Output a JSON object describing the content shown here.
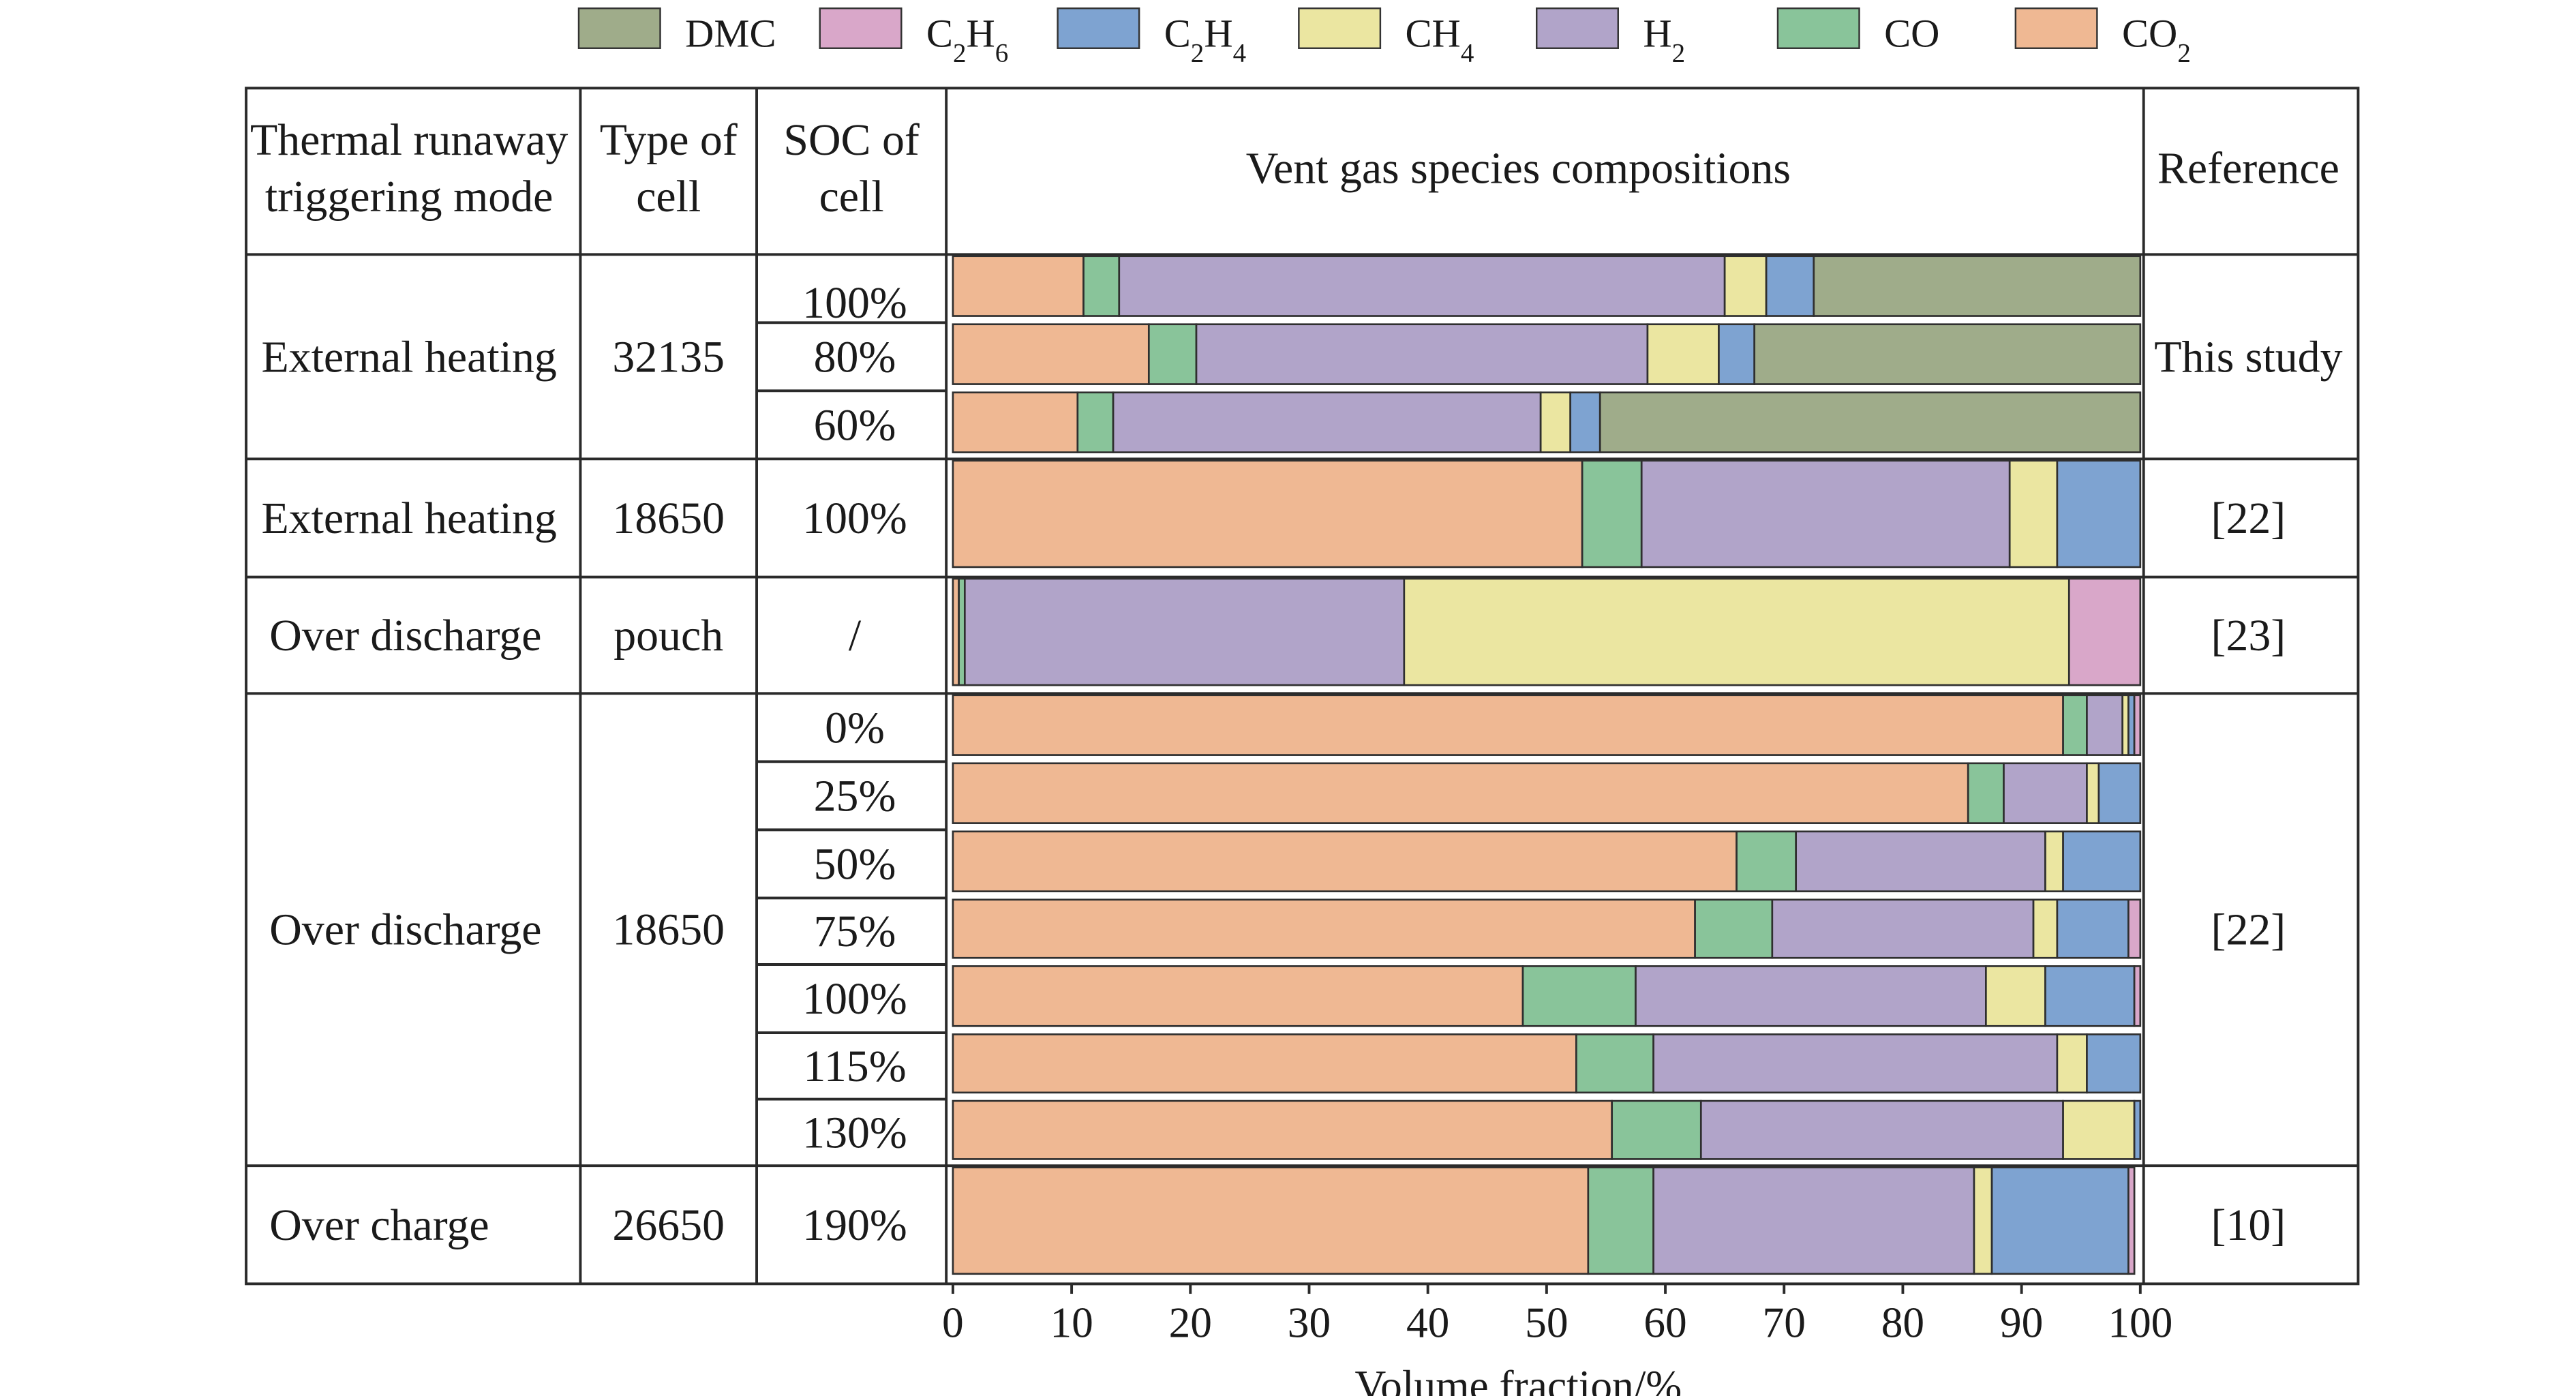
{
  "chart_data": {
    "type": "bar",
    "orientation": "horizontal",
    "stacked": true,
    "xlabel": "Volume fraction/%",
    "xlim": [
      0,
      100
    ],
    "xticks": [
      "0",
      "10",
      "20",
      "30",
      "40",
      "50",
      "60",
      "70",
      "80",
      "90",
      "100"
    ],
    "legend_position": "top",
    "legend": [
      {
        "key": "DMC",
        "main": "DMC",
        "sub": "",
        "color": "#9fac8a"
      },
      {
        "key": "C2H6",
        "main": "C",
        "sub": "2",
        "main2": "H",
        "sub2": "6",
        "color": "#d9a7c9"
      },
      {
        "key": "C2H4",
        "main": "C",
        "sub": "2",
        "main2": "H",
        "sub2": "4",
        "color": "#7ea3d1"
      },
      {
        "key": "CH4",
        "main": "CH",
        "sub": "4",
        "color": "#ebe6a1"
      },
      {
        "key": "H2",
        "main": "H",
        "sub": "2",
        "color": "#b1a4c9"
      },
      {
        "key": "CO",
        "main": "CO",
        "sub": "",
        "color": "#89c49a"
      },
      {
        "key": "CO2",
        "main": "CO",
        "sub": "2",
        "color": "#efb893"
      }
    ],
    "headers": {
      "mode": [
        "Thermal runaway",
        "triggering mode"
      ],
      "type": [
        "Type of",
        "cell"
      ],
      "soc": [
        "SOC of",
        "cell"
      ],
      "comp": "Vent gas species compositions",
      "ref": "Reference"
    },
    "groups": [
      {
        "mode": "External heating",
        "cell": "32135",
        "reference": "This study",
        "rows": [
          0,
          1,
          2
        ]
      },
      {
        "mode": "External heating",
        "cell": "18650",
        "reference": "[22]",
        "rows": [
          3
        ]
      },
      {
        "mode": "Over discharge",
        "cell": "pouch",
        "reference": "[23]",
        "rows": [
          4
        ]
      },
      {
        "mode": "Over discharge",
        "cell": "18650",
        "reference": "[22]",
        "rows": [
          5,
          6,
          7,
          8,
          9,
          10,
          11
        ]
      },
      {
        "mode": "Over charge",
        "cell": "26650",
        "reference": "[10]",
        "rows": [
          12
        ]
      }
    ],
    "series_order": [
      "CO2",
      "CO",
      "H2",
      "CH4",
      "C2H4",
      "C2H6",
      "DMC"
    ],
    "rows": [
      {
        "soc": "100%",
        "values": {
          "CO2": 11,
          "CO": 3,
          "H2": 51,
          "CH4": 3.5,
          "C2H4": 4,
          "C2H6": 0,
          "DMC": 27.5
        }
      },
      {
        "soc": "80%",
        "values": {
          "CO2": 16.5,
          "CO": 4,
          "H2": 38,
          "CH4": 6,
          "C2H4": 3,
          "C2H6": 0,
          "DMC": 32.5
        }
      },
      {
        "soc": "60%",
        "values": {
          "CO2": 10.5,
          "CO": 3,
          "H2": 36,
          "CH4": 2.5,
          "C2H4": 2.5,
          "C2H6": 0,
          "DMC": 45.5
        }
      },
      {
        "soc": "100%",
        "values": {
          "CO2": 53,
          "CO": 5,
          "H2": 31,
          "CH4": 4,
          "C2H4": 7,
          "C2H6": 0,
          "DMC": 0
        }
      },
      {
        "soc": "/",
        "values": {
          "CO2": 0.5,
          "CO": 0.5,
          "H2": 37,
          "CH4": 56,
          "C2H4": 0,
          "C2H6": 6,
          "DMC": 0
        }
      },
      {
        "soc": "0%",
        "values": {
          "CO2": 93.5,
          "CO": 2,
          "H2": 3,
          "CH4": 0.5,
          "C2H4": 0.5,
          "C2H6": 0.5,
          "DMC": 0
        }
      },
      {
        "soc": "25%",
        "values": {
          "CO2": 85.5,
          "CO": 3,
          "H2": 7,
          "CH4": 1,
          "C2H4": 3.5,
          "C2H6": 0,
          "DMC": 0
        }
      },
      {
        "soc": "50%",
        "values": {
          "CO2": 66,
          "CO": 5,
          "H2": 21,
          "CH4": 1.5,
          "C2H4": 6.5,
          "C2H6": 0,
          "DMC": 0
        }
      },
      {
        "soc": "75%",
        "values": {
          "CO2": 62.5,
          "CO": 6.5,
          "H2": 22,
          "CH4": 2,
          "C2H4": 6,
          "C2H6": 1,
          "DMC": 0
        }
      },
      {
        "soc": "100%",
        "values": {
          "CO2": 48,
          "CO": 9.5,
          "H2": 29.5,
          "CH4": 5,
          "C2H4": 7.5,
          "C2H6": 0.5,
          "DMC": 0
        }
      },
      {
        "soc": "115%",
        "values": {
          "CO2": 52.5,
          "CO": 6.5,
          "H2": 34,
          "CH4": 2.5,
          "C2H4": 4.5,
          "C2H6": 0,
          "DMC": 0
        }
      },
      {
        "soc": "130%",
        "values": {
          "CO2": 55.5,
          "CO": 7.5,
          "H2": 30.5,
          "CH4": 6,
          "C2H4": 0.5,
          "C2H6": 0,
          "DMC": 0
        }
      },
      {
        "soc": "190%",
        "values": {
          "CO2": 53.5,
          "CO": 5.5,
          "H2": 27,
          "CH4": 1.5,
          "C2H4": 11.5,
          "C2H6": 0.5,
          "DMC": 0
        }
      }
    ]
  }
}
